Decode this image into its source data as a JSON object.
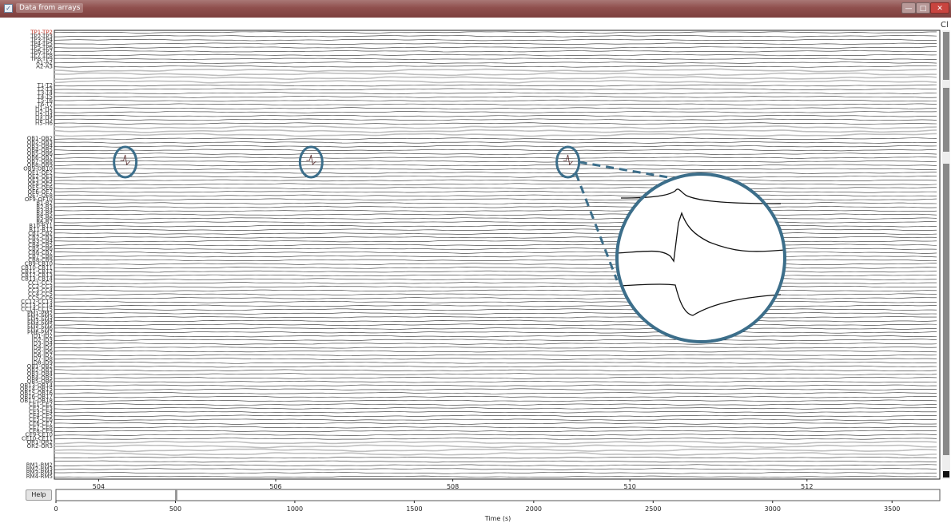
{
  "window": {
    "title": "Data from arrays",
    "icon": "window-app-icon",
    "controls": [
      "—",
      "□",
      "✕"
    ],
    "corner_label": "Cl"
  },
  "colors": {
    "titlebar": "#8f4f4d",
    "trace": "#2b2b2b",
    "bad_trace": "#bfbfbf",
    "highlight": "#3c6e8a",
    "first_label": "#c0392b",
    "scrollbar": "#888888"
  },
  "help_button": {
    "label": "Help"
  },
  "channels": [
    "TP1-TP2",
    "TP2-TP3",
    "TP3-TP4",
    "TP4-TP5",
    "TP5-TP6",
    "TP6-TP7",
    "TP7-TP8",
    "TP8-TP9",
    "A1-A2",
    "A2-A3",
    "",
    "",
    "",
    "",
    "T1-T2",
    "T2-T3",
    "T3-T4",
    "T4-T5",
    "T5-T6",
    "T6-T7",
    "H1-H2",
    "H2-H3",
    "H3-H4",
    "H4-H5",
    "H5-H6",
    "",
    "",
    "",
    "OB1-OB2",
    "OB2-OB3",
    "OB3-OB4",
    "OB4-OB5",
    "OB5-OB6",
    "OB6-OB7",
    "OB7-OB8",
    "OB8-OB9",
    "OB9-OB10",
    "OE1-OE2",
    "OE2-OE3",
    "OE3-OE4",
    "OE4-OE5",
    "OE5-OE6",
    "OE6-OE7",
    "OE7-OE8",
    "OF9-OF10",
    "B1-B2",
    "B2-B3",
    "B3-B4",
    "B4-B5",
    "B5-B6",
    "B6-B7",
    "B10-B11",
    "B11-B12",
    "CB1-CB2",
    "CB2-CB3",
    "CB3-CB4",
    "CB4-CB5",
    "CB5-CB6",
    "CB6-CB7",
    "CB7-CB8",
    "CB8-CB9",
    "CB9-CB10",
    "CB10-CB11",
    "CB11-CB12",
    "CB12-CB13",
    "CB13-CB14",
    "CC1-CC2",
    "CC2-CC3",
    "CC3-CC4",
    "CC4-CC5",
    "CC5-CC6",
    "CC12-CC13",
    "CC13-CC14",
    "CC14-CC15",
    "PM1-PM2",
    "PM2-PM3",
    "PM3-PM4",
    "PM4-PM5",
    "PM5-PM6",
    "PM6-PM7",
    "ID1-ID2",
    "ID2-ID3",
    "ID3-ID4",
    "ID4-ID5",
    "ID5-ID6",
    "ID6-ID7",
    "ID7-ID8",
    "ID8-ID9",
    "OB1-OB2",
    "OB2-OB3",
    "OB3-OB4",
    "OB4-OB5",
    "OB5-OB6",
    "OB13-OB14",
    "OB14-OB15",
    "OB15-OB16",
    "OB16-OB17",
    "OB17-OB18",
    "CE1-CE2",
    "CE2-CE3",
    "CE3-CE4",
    "CE4-CE5",
    "CE5-CE6",
    "CE6-CE7",
    "CE7-CE8",
    "CE8-CE9",
    "CE9-CE10",
    "CE10-CE11",
    "OR1-OR2",
    "OR2-OR3",
    "",
    "",
    "",
    "",
    "RM1-RM2",
    "RM2-RM3",
    "RM3-RM4",
    "RM4-RM5"
  ],
  "bad_channel_bands": [
    {
      "start": 10,
      "count": 4
    },
    {
      "start": 25,
      "count": 3
    },
    {
      "start": 108,
      "count": 4
    }
  ],
  "time_axis": {
    "ticks": [
      504,
      506,
      508,
      510,
      512
    ],
    "view_start": 503.5,
    "view_end": 513.5
  },
  "overview_axis": {
    "ticks": [
      0,
      500,
      1000,
      1500,
      2000,
      2500,
      3000,
      3500
    ],
    "max": 3700,
    "xlabel": "Time (s)",
    "view_position": 503.5
  },
  "highlights": {
    "shape": "circle",
    "events_at_seconds": [
      504.3,
      506.4,
      509.3
    ],
    "zoom_inset": "enlarged view of the event at 509.3 s"
  }
}
